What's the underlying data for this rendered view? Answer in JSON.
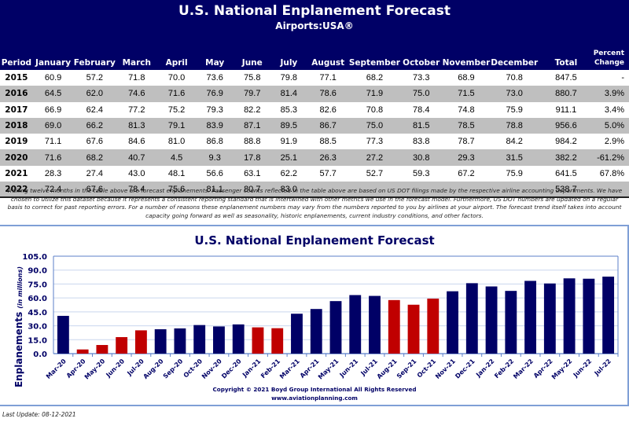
{
  "header": {
    "title": "U.S. National Enplanement Forecast",
    "subtitle": "Airports:USA®"
  },
  "table": {
    "columns": [
      "Period",
      "January",
      "February",
      "March",
      "April",
      "May",
      "June",
      "July",
      "August",
      "September",
      "October",
      "November",
      "December",
      "Total"
    ],
    "pct_header_line1": "Percent",
    "pct_header_line2": "Change",
    "rows": [
      {
        "period": "2015",
        "months": [
          "60.9",
          "57.2",
          "71.8",
          "70.0",
          "73.6",
          "75.8",
          "79.8",
          "77.1",
          "68.2",
          "73.3",
          "68.9",
          "70.8"
        ],
        "total": "847.5",
        "pct": "-"
      },
      {
        "period": "2016",
        "months": [
          "64.5",
          "62.0",
          "74.6",
          "71.6",
          "76.9",
          "79.7",
          "81.4",
          "78.6",
          "71.9",
          "75.0",
          "71.5",
          "73.0"
        ],
        "total": "880.7",
        "pct": "3.9%"
      },
      {
        "period": "2017",
        "months": [
          "66.9",
          "62.4",
          "77.2",
          "75.2",
          "79.3",
          "82.2",
          "85.3",
          "82.6",
          "70.8",
          "78.4",
          "74.8",
          "75.9"
        ],
        "total": "911.1",
        "pct": "3.4%"
      },
      {
        "period": "2018",
        "months": [
          "69.0",
          "66.2",
          "81.3",
          "79.1",
          "83.9",
          "87.1",
          "89.5",
          "86.7",
          "75.0",
          "81.5",
          "78.5",
          "78.8"
        ],
        "total": "956.6",
        "pct": "5.0%"
      },
      {
        "period": "2019",
        "months": [
          "71.1",
          "67.6",
          "84.6",
          "81.0",
          "86.8",
          "88.8",
          "91.9",
          "88.5",
          "77.3",
          "83.8",
          "78.7",
          "84.2"
        ],
        "total": "984.2",
        "pct": "2.9%"
      },
      {
        "period": "2020",
        "months": [
          "71.6",
          "68.2",
          "40.7",
          "4.5",
          "9.3",
          "17.8",
          "25.1",
          "26.3",
          "27.2",
          "30.8",
          "29.3",
          "31.5"
        ],
        "total": "382.2",
        "pct": "-61.2%"
      },
      {
        "period": "2021",
        "months": [
          "28.3",
          "27.4",
          "43.0",
          "48.1",
          "56.6",
          "63.1",
          "62.2",
          "57.7",
          "52.7",
          "59.3",
          "67.2",
          "75.9"
        ],
        "total": "641.5",
        "pct": "67.8%"
      },
      {
        "period": "2022",
        "months": [
          "72.4",
          "67.6",
          "78.4",
          "75.6",
          "81.1",
          "80.7",
          "83.0",
          "",
          "",
          "",
          "",
          ""
        ],
        "total": "538.7",
        "pct": ""
      }
    ]
  },
  "note": "Trailing twelve months in the table above are forecast enplanements. Passenger counts reflected in the table above are based on US DOT filings made by the respective airline accounting departments.  We have chosen to utilize this dataset because it represents a consistent reporting standard that is intertwined with other metrics we use in the forecast model.  Furthermore, US DOT numbers are updated on a regular basis to correct for past reporting errors.  For a number of reasons these enplanement numbers may vary from the numbers reported to you by airlines at your airport.  The forecast trend itself takes into account capacity going forward as well as seasonality, historic enplanements, current industry conditions, and other factors.",
  "colors": {
    "header_bg": "#000066",
    "bar_primary": "#000066",
    "bar_highlight": "#c00000",
    "gridline": "#c9d6ee",
    "axis": "#5b7fc9"
  },
  "chart_data": {
    "type": "bar",
    "title": "U.S. National Enplanement Forecast",
    "xlabel": "",
    "ylabel": "Enplanements",
    "ylabel_suffix": "(in millions)",
    "ylim": [
      0,
      105
    ],
    "yticks": [
      "0.0",
      "15.0",
      "30.0",
      "45.0",
      "60.0",
      "75.0",
      "90.0",
      "105.0"
    ],
    "grid": true,
    "legend": "none",
    "categories": [
      "Mar-20",
      "Apr-20",
      "May-20",
      "Jun-20",
      "Jul-20",
      "Aug-20",
      "Sep-20",
      "Oct-20",
      "Nov-20",
      "Dec-20",
      "Jan-21",
      "Feb-21",
      "Mar-21",
      "Apr-21",
      "May-21",
      "Jun-21",
      "Jul-21",
      "Aug-21",
      "Sep-21",
      "Oct-21",
      "Nov-21",
      "Dec-21",
      "Jan-22",
      "Feb-22",
      "Mar-22",
      "Apr-22",
      "May-22",
      "Jun-22",
      "Jul-22"
    ],
    "values": [
      40.7,
      4.5,
      9.3,
      17.8,
      25.1,
      26.3,
      27.2,
      30.8,
      29.3,
      31.5,
      28.3,
      27.4,
      43.0,
      48.1,
      56.6,
      63.1,
      62.2,
      57.7,
      52.7,
      59.3,
      67.2,
      75.9,
      72.4,
      67.6,
      78.4,
      75.6,
      81.1,
      80.7,
      83.0
    ],
    "highlighted": [
      false,
      true,
      true,
      true,
      true,
      false,
      false,
      false,
      false,
      false,
      true,
      true,
      false,
      false,
      false,
      false,
      false,
      true,
      true,
      true,
      false,
      false,
      false,
      false,
      false,
      false,
      false,
      false,
      false
    ]
  },
  "footer": {
    "copyright": "Copyright © 2021 Boyd Group International All Rights Reserved",
    "website": "www.aviationplanning.com",
    "last_update": "Last Update: 08-12-2021"
  }
}
